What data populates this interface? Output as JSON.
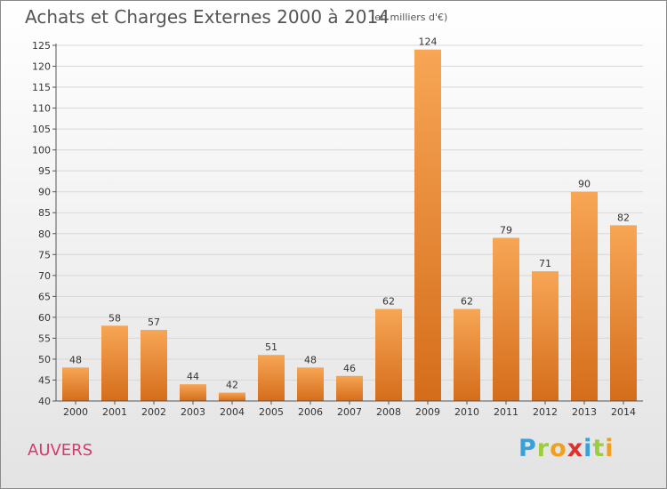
{
  "colors": {
    "bar_top": "#f7a655",
    "bar_bottom": "#d46d1b",
    "grid": "#d7d7d7",
    "axis": "#555555",
    "commune": "#d63a6e"
  },
  "chart_data": {
    "type": "bar",
    "title": "Achats et Charges Externes 2000 à 2014",
    "subtitle": "(en milliers d'€)",
    "categories": [
      "2000",
      "2001",
      "2002",
      "2003",
      "2004",
      "2005",
      "2006",
      "2007",
      "2008",
      "2009",
      "2010",
      "2011",
      "2012",
      "2013",
      "2014"
    ],
    "values": [
      48,
      58,
      57,
      44,
      42,
      51,
      48,
      46,
      62,
      124,
      62,
      79,
      71,
      90,
      82
    ],
    "data_labels": [
      "48",
      "58",
      "57",
      "44",
      "42",
      "51",
      "48",
      "46",
      "62",
      "124",
      "62",
      "79",
      "71",
      "90",
      "82"
    ],
    "ylim": [
      40,
      125
    ],
    "yticks": [
      "40",
      "45",
      "50",
      "55",
      "60",
      "65",
      "70",
      "75",
      "80",
      "85",
      "90",
      "95",
      "100",
      "105",
      "110",
      "115",
      "120",
      "125"
    ],
    "grid": true,
    "xlabel": "",
    "ylabel": ""
  },
  "footer": {
    "commune": "AUVERS",
    "logo": {
      "p": "P",
      "r": "r",
      "o": "o",
      "x": "x",
      "i": "i",
      "t": "t",
      "i2": "i"
    }
  }
}
